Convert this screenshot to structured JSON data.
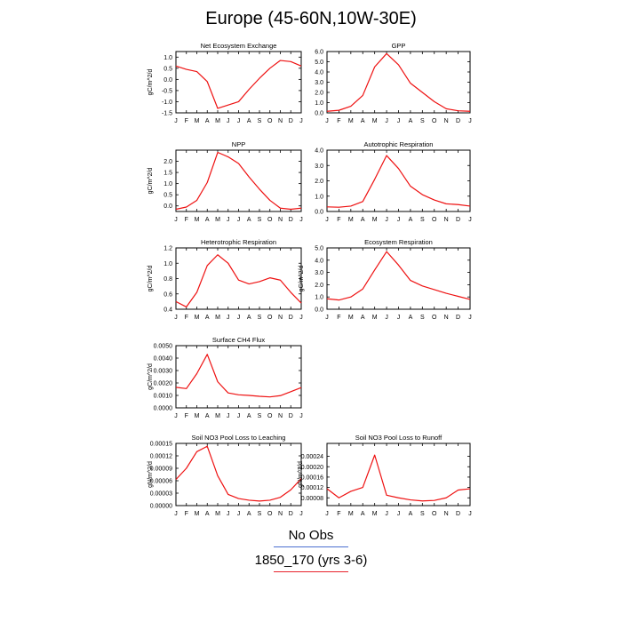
{
  "title": "Europe (45-60N,10W-30E)",
  "months": [
    "J",
    "F",
    "M",
    "A",
    "M",
    "J",
    "J",
    "A",
    "S",
    "O",
    "N",
    "D",
    "J"
  ],
  "legend": [
    {
      "label": "No Obs",
      "color": "#4a6fd0"
    },
    {
      "label": "1850_170 (yrs 3-6)",
      "color": "#e8222b"
    }
  ],
  "line_color": "#ee1111",
  "chart_data": [
    {
      "type": "line",
      "title": "Net Ecosystem Exchange",
      "ylabel": "gC/m^2/d",
      "x": [
        "J",
        "F",
        "M",
        "A",
        "M",
        "J",
        "J",
        "A",
        "S",
        "O",
        "N",
        "D",
        "J"
      ],
      "ylim": [
        -1.5,
        1.25
      ],
      "yticks": [
        -1.5,
        -1.0,
        -0.5,
        0.0,
        0.5,
        1.0
      ],
      "ytick_labels": [
        "-1.5",
        "-1.0",
        "-0.5",
        "0.0",
        "0.5",
        "1.0"
      ],
      "series": [
        {
          "values": [
            0.6,
            0.45,
            0.35,
            -0.1,
            -1.3,
            -1.15,
            -1.0,
            -0.45,
            0.05,
            0.5,
            0.85,
            0.8,
            0.6
          ]
        }
      ]
    },
    {
      "type": "line",
      "title": "GPP",
      "ylabel": "",
      "x": [
        "J",
        "F",
        "M",
        "A",
        "M",
        "J",
        "J",
        "A",
        "S",
        "O",
        "N",
        "D",
        "J"
      ],
      "ylim": [
        0.0,
        6.0
      ],
      "yticks": [
        0.0,
        1.0,
        2.0,
        3.0,
        4.0,
        5.0,
        6.0
      ],
      "ytick_labels": [
        "0.0",
        "1.0",
        "2.0",
        "3.0",
        "4.0",
        "5.0",
        "6.0"
      ],
      "series": [
        {
          "values": [
            0.15,
            0.25,
            0.65,
            1.7,
            4.5,
            5.8,
            4.7,
            2.9,
            2.0,
            1.1,
            0.4,
            0.2,
            0.15
          ]
        }
      ]
    },
    {
      "type": "line",
      "title": "NPP",
      "ylabel": "gC/m^2/d",
      "x": [
        "J",
        "F",
        "M",
        "A",
        "M",
        "J",
        "J",
        "A",
        "S",
        "O",
        "N",
        "D",
        "J"
      ],
      "ylim": [
        -0.25,
        2.5
      ],
      "yticks": [
        0.0,
        0.5,
        1.0,
        1.5,
        2.0
      ],
      "ytick_labels": [
        "0.0",
        "0.5",
        "1.0",
        "1.5",
        "2.0"
      ],
      "series": [
        {
          "values": [
            -0.15,
            -0.05,
            0.25,
            1.05,
            2.4,
            2.2,
            1.9,
            1.3,
            0.75,
            0.25,
            -0.1,
            -0.15,
            -0.1
          ]
        }
      ]
    },
    {
      "type": "line",
      "title": "Autotrophic Respiration",
      "ylabel": "",
      "x": [
        "J",
        "F",
        "M",
        "A",
        "M",
        "J",
        "J",
        "A",
        "S",
        "O",
        "N",
        "D",
        "J"
      ],
      "ylim": [
        0.0,
        4.0
      ],
      "yticks": [
        0.0,
        1.0,
        2.0,
        3.0,
        4.0
      ],
      "ytick_labels": [
        "0.0",
        "1.0",
        "2.0",
        "3.0",
        "4.0"
      ],
      "series": [
        {
          "values": [
            0.3,
            0.28,
            0.35,
            0.65,
            2.1,
            3.65,
            2.8,
            1.65,
            1.1,
            0.75,
            0.5,
            0.45,
            0.35
          ]
        }
      ]
    },
    {
      "type": "line",
      "title": "Heterotrophic Respiration",
      "ylabel": "gC/m^2/d",
      "x": [
        "J",
        "F",
        "M",
        "A",
        "M",
        "J",
        "J",
        "A",
        "S",
        "O",
        "N",
        "D",
        "J"
      ],
      "ylim": [
        0.4,
        1.2
      ],
      "yticks": [
        0.4,
        0.6,
        0.8,
        1.0,
        1.2
      ],
      "ytick_labels": [
        "0.4",
        "0.6",
        "0.8",
        "1.0",
        "1.2"
      ],
      "series": [
        {
          "values": [
            0.5,
            0.43,
            0.62,
            0.97,
            1.11,
            1.0,
            0.78,
            0.73,
            0.76,
            0.81,
            0.78,
            0.62,
            0.48
          ]
        }
      ]
    },
    {
      "type": "line",
      "title": "Ecosystem Respiration",
      "ylabel": "gC/m^2/d",
      "x": [
        "J",
        "F",
        "M",
        "A",
        "M",
        "J",
        "J",
        "A",
        "S",
        "O",
        "N",
        "D",
        "J"
      ],
      "ylim": [
        0.0,
        5.0
      ],
      "yticks": [
        0.0,
        1.0,
        2.0,
        3.0,
        4.0,
        5.0
      ],
      "ytick_labels": [
        "0.0",
        "1.0",
        "2.0",
        "3.0",
        "4.0",
        "5.0"
      ],
      "series": [
        {
          "values": [
            0.85,
            0.75,
            1.0,
            1.65,
            3.2,
            4.7,
            3.6,
            2.35,
            1.9,
            1.6,
            1.3,
            1.05,
            0.8
          ]
        }
      ]
    },
    {
      "type": "line",
      "title": "Surface CH4 Flux",
      "ylabel": "gC/m^2/d",
      "x": [
        "J",
        "F",
        "M",
        "A",
        "M",
        "J",
        "J",
        "A",
        "S",
        "O",
        "N",
        "D",
        "J"
      ],
      "ylim": [
        0.0,
        0.005
      ],
      "yticks": [
        0.0,
        0.001,
        0.002,
        0.003,
        0.004,
        0.005
      ],
      "ytick_labels": [
        "0.0000",
        "0.0010",
        "0.0020",
        "0.0030",
        "0.0040",
        "0.0050"
      ],
      "series": [
        {
          "values": [
            0.00165,
            0.00155,
            0.00275,
            0.0043,
            0.0021,
            0.0012,
            0.00105,
            0.001,
            0.00093,
            0.00088,
            0.00098,
            0.0013,
            0.00163
          ]
        }
      ]
    },
    {
      "type": "line",
      "title": "Soil NO3 Pool Loss to Leaching",
      "ylabel": "gN/m^2/d",
      "x": [
        "J",
        "F",
        "M",
        "A",
        "M",
        "J",
        "J",
        "A",
        "S",
        "O",
        "N",
        "D",
        "J"
      ],
      "ylim": [
        0.0,
        0.00015
      ],
      "yticks": [
        0.0,
        3e-05,
        6e-05,
        9e-05,
        0.00012,
        0.00015
      ],
      "ytick_labels": [
        "0.00000",
        "0.00003",
        "0.00006",
        "0.00009",
        "0.00012",
        "0.00015"
      ],
      "series": [
        {
          "values": [
            6.3e-05,
            9e-05,
            0.00013,
            0.000143,
            7.2e-05,
            2.7e-05,
            1.7e-05,
            1.3e-05,
            1.1e-05,
            1.3e-05,
            2e-05,
            3.8e-05,
            6.5e-05
          ]
        }
      ]
    },
    {
      "type": "line",
      "title": "Soil NO3 Pool Loss to Runoff",
      "ylabel": "gN/m^2/d",
      "x": [
        "J",
        "F",
        "M",
        "A",
        "M",
        "J",
        "J",
        "A",
        "S",
        "O",
        "N",
        "D",
        "J"
      ],
      "ylim": [
        5e-05,
        0.00029
      ],
      "yticks": [
        8e-05,
        0.00012,
        0.00016,
        0.0002,
        0.00024
      ],
      "ytick_labels": [
        "0.00008",
        "0.00012",
        "0.00016",
        "0.00020",
        "0.00024"
      ],
      "series": [
        {
          "values": [
            0.000115,
            8e-05,
            0.000105,
            0.00012,
            0.000245,
            9e-05,
            8e-05,
            7.2e-05,
            6.8e-05,
            7e-05,
            8e-05,
            0.00011,
            0.000115
          ]
        }
      ]
    }
  ]
}
